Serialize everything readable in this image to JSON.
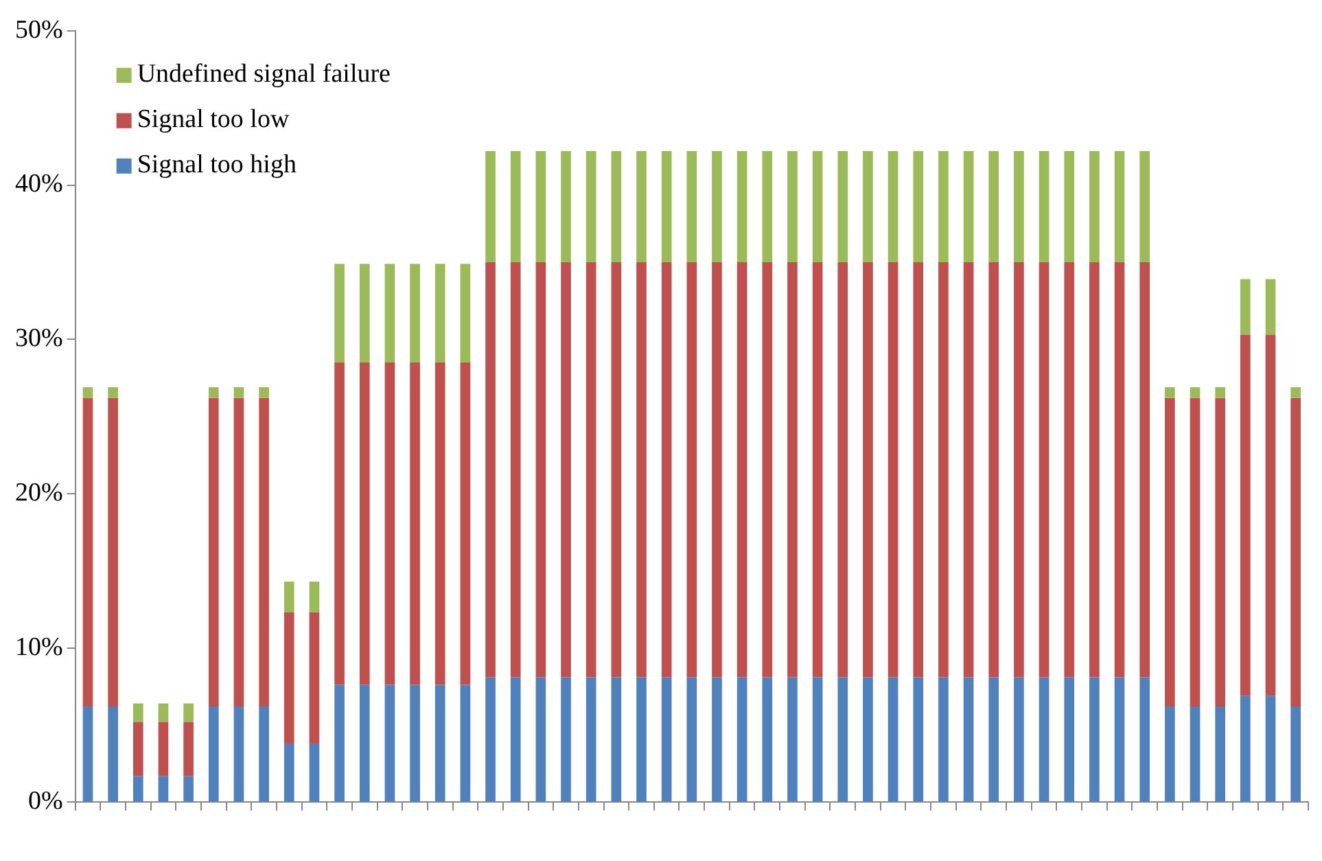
{
  "chart_data": {
    "type": "bar",
    "stacked": true,
    "categories": [
      null,
      null,
      null,
      null,
      null,
      null,
      null,
      null,
      null,
      null,
      null,
      null,
      null,
      null,
      null,
      null,
      null,
      null,
      null,
      null,
      null,
      null,
      null,
      null,
      null,
      null,
      null,
      null,
      null,
      null,
      null,
      null,
      null,
      null,
      null,
      null,
      null,
      null,
      null,
      null,
      null,
      null,
      null,
      null,
      null,
      null,
      null,
      null,
      null
    ],
    "series": [
      {
        "name": "Signal too high",
        "color": "#4f81bd",
        "values": [
          6.2,
          6.2,
          1.7,
          1.7,
          1.7,
          6.2,
          6.2,
          6.2,
          3.8,
          3.8,
          7.6,
          7.6,
          7.6,
          7.6,
          7.6,
          7.6,
          8.1,
          8.1,
          8.1,
          8.1,
          8.1,
          8.1,
          8.1,
          8.1,
          8.1,
          8.1,
          8.1,
          8.1,
          8.1,
          8.1,
          8.1,
          8.1,
          8.1,
          8.1,
          8.1,
          8.1,
          8.1,
          8.1,
          8.1,
          8.1,
          8.1,
          8.1,
          8.1,
          6.2,
          6.2,
          6.2,
          6.9,
          6.9,
          6.2
        ]
      },
      {
        "name": "Signal too low",
        "color": "#c0504d",
        "values": [
          20.0,
          20.0,
          3.5,
          3.5,
          3.5,
          20.0,
          20.0,
          20.0,
          8.5,
          8.5,
          20.9,
          20.9,
          20.9,
          20.9,
          20.9,
          20.9,
          26.9,
          26.9,
          26.9,
          26.9,
          26.9,
          26.9,
          26.9,
          26.9,
          26.9,
          26.9,
          26.9,
          26.9,
          26.9,
          26.9,
          26.9,
          26.9,
          26.9,
          26.9,
          26.9,
          26.9,
          26.9,
          26.9,
          26.9,
          26.9,
          26.9,
          26.9,
          26.9,
          20.0,
          20.0,
          20.0,
          23.4,
          23.4,
          20.0
        ]
      },
      {
        "name": "Undefined signal failure",
        "color": "#9bbb59",
        "values": [
          0.7,
          0.7,
          1.2,
          1.2,
          1.2,
          0.7,
          0.7,
          0.7,
          2.0,
          2.0,
          6.4,
          6.4,
          6.4,
          6.4,
          6.4,
          6.4,
          7.2,
          7.2,
          7.2,
          7.2,
          7.2,
          7.2,
          7.2,
          7.2,
          7.2,
          7.2,
          7.2,
          7.2,
          7.2,
          7.2,
          7.2,
          7.2,
          7.2,
          7.2,
          7.2,
          7.2,
          7.2,
          7.2,
          7.2,
          7.2,
          7.2,
          7.2,
          7.2,
          0.7,
          0.7,
          0.7,
          3.6,
          3.6,
          0.7
        ]
      }
    ],
    "ylim": [
      0,
      50
    ],
    "yticks": [
      {
        "value": 0,
        "label": "0%"
      },
      {
        "value": 10,
        "label": "10%"
      },
      {
        "value": 20,
        "label": "20%"
      },
      {
        "value": 30,
        "label": "30%"
      },
      {
        "value": 40,
        "label": "40%"
      },
      {
        "value": 50,
        "label": "50%"
      }
    ],
    "grid": false,
    "legend": "top left"
  }
}
